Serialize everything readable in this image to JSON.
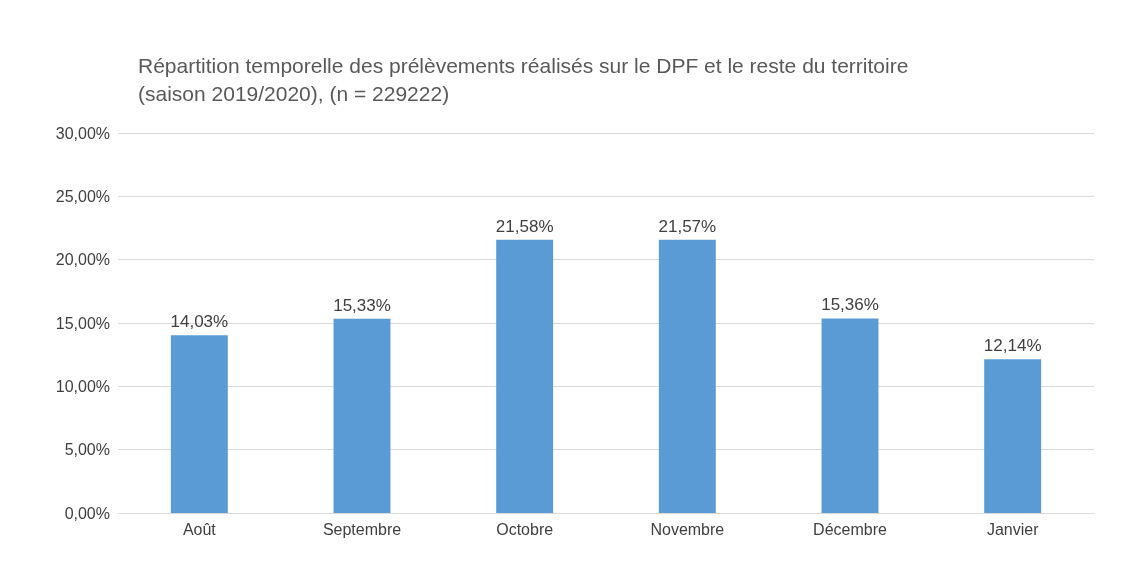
{
  "chart_data": {
    "type": "bar",
    "title": "Répartition temporelle des prélèvements réalisés sur le DPF et le reste du territoire (saison 2019/2020), (n = 229222)",
    "categories": [
      "Août",
      "Septembre",
      "Octobre",
      "Novembre",
      "Décembre",
      "Janvier"
    ],
    "values": [
      14.03,
      15.33,
      21.58,
      21.57,
      15.36,
      12.14
    ],
    "value_labels": [
      "14,03%",
      "15,33%",
      "21,58%",
      "21,57%",
      "15,36%",
      "12,14%"
    ],
    "color": "#5b9bd5",
    "ylim": [
      0,
      30
    ],
    "yticks": [
      {
        "value": 0,
        "label": "0,00%"
      },
      {
        "value": 5,
        "label": "5,00%"
      },
      {
        "value": 10,
        "label": "10,00%"
      },
      {
        "value": 15,
        "label": "15,00%"
      },
      {
        "value": 20,
        "label": "20,00%"
      },
      {
        "value": 25,
        "label": "25,00%"
      },
      {
        "value": 30,
        "label": "30,00%"
      }
    ],
    "grid": "y"
  }
}
